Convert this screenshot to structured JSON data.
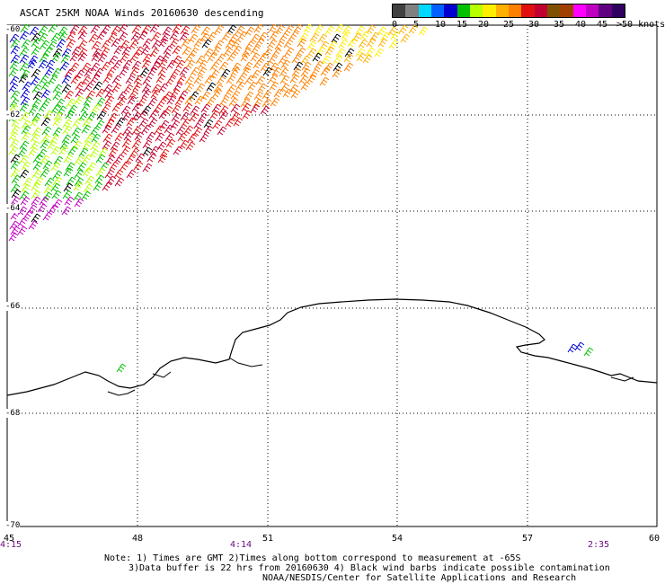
{
  "title": "ASCAT 25KM NOAA Winds 20160630 descending",
  "colorbar": {
    "colors": [
      "#404040",
      "#808080",
      "#00d8ff",
      "#0060ff",
      "#0000d0",
      "#00c000",
      "#b8ff00",
      "#ffee00",
      "#ffb000",
      "#ff8000",
      "#e01010",
      "#c00030",
      "#805000",
      "#a04000",
      "#ff00ff",
      "#c000c0",
      "#600080",
      "#300060"
    ],
    "labels": [
      "0",
      "5",
      "10",
      "15",
      "20",
      "25",
      "30",
      "35",
      "40",
      "45",
      ">50 knots"
    ]
  },
  "latitude_labels": [
    "-60",
    "-62",
    "-64",
    "-66",
    "-68",
    "-70"
  ],
  "longitude_labels": [
    "45",
    "48",
    "51",
    "54",
    "57",
    "60"
  ],
  "time_labels": [
    "4:15",
    "4:14",
    "2:35"
  ],
  "notes": [
    "Note: 1) Times are GMT 2)Times along bottom correspond to measurement at -65S",
    "3)Data buffer is 22 hrs from 20160630 4) Black wind barbs indicate possible contamination",
    "NOAA/NESDIS/Center for Satellite Applications and Research"
  ]
}
